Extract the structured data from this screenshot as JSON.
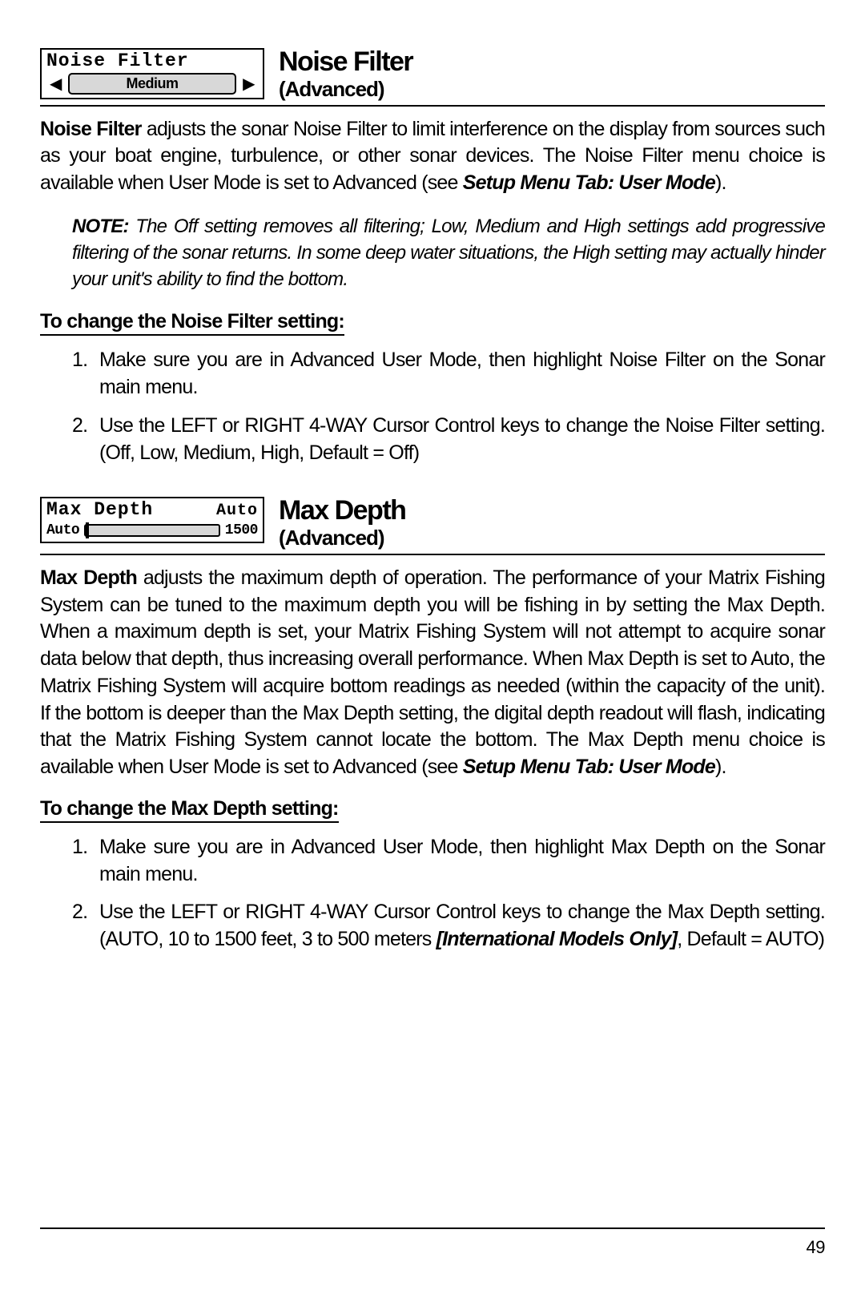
{
  "section1": {
    "widget": {
      "title": "Noise Filter",
      "pill_value": "Medium"
    },
    "heading_title": "Noise Filter",
    "heading_sub": "(Advanced)",
    "body_lead": "Noise Filter",
    "body_rest": " adjusts the sonar Noise Filter to limit interference on the display from sources such as your boat engine, turbulence, or other sonar devices. The Noise Filter menu choice is available when User Mode is set to Advanced (see ",
    "body_ital": "Setup Menu Tab: User Mode",
    "body_tail": ").",
    "note_label": "NOTE:",
    "note_text": "  The Off setting removes all filtering; Low, Medium and High settings add progressive filtering of the sonar returns. In some deep water situations, the High setting may actually hinder your unit's ability to find the bottom.",
    "subhead": "To change the Noise Filter setting:",
    "step1": "Make sure you are in Advanced User Mode, then highlight Noise Filter on the Sonar main menu.",
    "step2": "Use the LEFT or RIGHT 4-WAY Cursor Control keys to change the Noise Filter setting. (Off, Low, Medium, High, Default = Off)"
  },
  "section2": {
    "widget": {
      "title": "Max Depth",
      "value": "Auto",
      "slider_left": "Auto",
      "slider_right": "1500"
    },
    "heading_title": "Max Depth",
    "heading_sub": "(Advanced)",
    "body_lead": "Max Depth",
    "body_rest": " adjusts the maximum depth of operation. The performance of your  Matrix Fishing System can be tuned to the maximum depth you will be fishing in by setting the Max Depth. When a maximum depth is set, your  Matrix Fishing System  will not attempt to acquire sonar data below that depth, thus increasing overall performance. When Max Depth is set to Auto, the  Matrix Fishing System will acquire bottom readings as needed (within the capacity of the unit). If the bottom is deeper than the Max Depth setting, the digital depth readout will flash, indicating that the  Matrix Fishing System cannot locate the bottom. The Max Depth menu choice is available when User Mode is set to Advanced (see ",
    "body_ital": "Setup Menu Tab: User Mode",
    "body_tail": ").",
    "subhead": "To change the Max Depth setting:",
    "step1": "Make sure you are in Advanced User Mode, then highlight Max Depth on the Sonar main menu.",
    "step2a": "Use the LEFT or RIGHT 4-WAY Cursor Control keys to change the Max Depth setting. (AUTO, 10 to 1500 feet, 3 to 500 meters ",
    "step2_ital": "[International Models Only]",
    "step2b": ", Default = AUTO)"
  },
  "page_number": "49"
}
